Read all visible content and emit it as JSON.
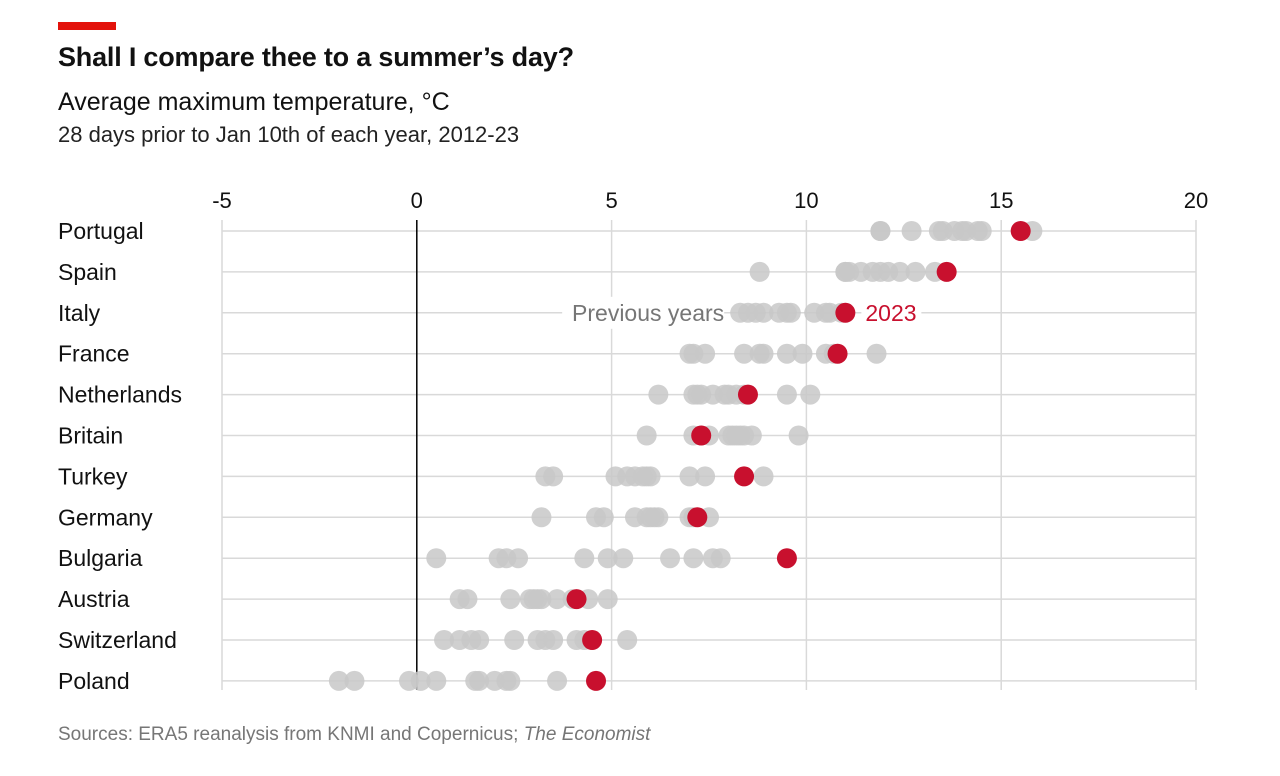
{
  "header": {
    "title": "Shall I compare thee to a summer’s day?",
    "subtitle": "Average maximum temperature, °C",
    "description": "28 days prior to Jan 10th of each year, 2012-23"
  },
  "footer": {
    "source_prefix": "Sources: ERA5 reanalysis from KNMI and Copernicus; ",
    "source_italic": "The Economist"
  },
  "colors": {
    "accent_bar": "#e3120b",
    "highlight": "#c8102e",
    "previous": "#c8c8c8",
    "gridline": "#d9d9d9",
    "zero_line": "#000000",
    "annotation_previous": "#767676"
  },
  "chart_data": {
    "type": "scatter",
    "title": "Shall I compare thee to a summer’s day?",
    "subtitle": "Average maximum temperature, °C",
    "xlabel": "",
    "ylabel": "",
    "xlim": [
      -5,
      20
    ],
    "xticks": [
      -5,
      0,
      5,
      10,
      15,
      20
    ],
    "xtick_labels": [
      "-5",
      "0",
      "5",
      "10",
      "15",
      "20"
    ],
    "grid": true,
    "axis_position": "top",
    "annotations": {
      "previous_label": "Previous years",
      "highlight_label": "2023"
    },
    "categories": [
      "Portugal",
      "Spain",
      "Italy",
      "France",
      "Netherlands",
      "Britain",
      "Turkey",
      "Germany",
      "Bulgaria",
      "Austria",
      "Switzerland",
      "Poland"
    ],
    "series": [
      {
        "name": "Previous years",
        "values": [
          [
            11.9,
            12.7,
            13.4,
            13.5,
            13.8,
            14.0,
            14.1,
            14.4,
            14.5,
            15.8,
            11.9
          ],
          [
            8.8,
            11.0,
            11.1,
            11.4,
            11.7,
            11.9,
            12.1,
            12.4,
            12.8,
            13.3,
            11.0
          ],
          [
            8.3,
            8.5,
            8.9,
            9.3,
            9.5,
            10.2,
            10.6,
            10.9,
            8.7,
            9.6,
            10.5
          ],
          [
            7.0,
            7.1,
            7.4,
            8.4,
            8.8,
            8.9,
            9.5,
            9.9,
            10.5,
            10.7,
            11.8
          ],
          [
            6.2,
            7.1,
            7.3,
            7.6,
            8.0,
            8.2,
            8.4,
            9.5,
            10.1,
            7.2,
            7.9
          ],
          [
            5.9,
            7.1,
            7.5,
            8.1,
            8.2,
            8.3,
            8.4,
            8.6,
            9.8,
            8.0,
            7.3
          ],
          [
            3.3,
            3.5,
            5.1,
            5.4,
            5.6,
            5.8,
            6.0,
            7.0,
            7.4,
            8.9,
            5.9
          ],
          [
            3.2,
            4.6,
            4.8,
            5.6,
            5.9,
            6.1,
            6.2,
            7.0,
            7.5,
            6.0,
            7.1
          ],
          [
            0.5,
            2.1,
            2.3,
            2.6,
            4.3,
            4.9,
            5.3,
            6.5,
            7.1,
            7.6,
            7.8
          ],
          [
            1.1,
            1.3,
            2.4,
            2.9,
            3.1,
            3.2,
            3.6,
            4.0,
            4.4,
            4.9,
            3.0
          ],
          [
            0.7,
            1.1,
            1.4,
            1.6,
            2.5,
            3.1,
            3.3,
            3.5,
            4.1,
            4.3,
            5.4
          ],
          [
            -2.0,
            -1.6,
            -0.2,
            0.1,
            0.5,
            1.6,
            2.0,
            2.3,
            2.4,
            3.6,
            1.5
          ]
        ]
      },
      {
        "name": "2023",
        "values": [
          15.5,
          13.6,
          11.0,
          10.8,
          8.5,
          7.3,
          8.4,
          7.2,
          9.5,
          4.1,
          4.5,
          4.6
        ]
      }
    ]
  }
}
